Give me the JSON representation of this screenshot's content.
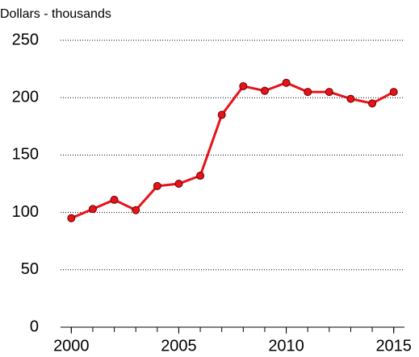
{
  "chart_data": {
    "type": "line",
    "subtitle": "Dollars - thousands",
    "x": [
      2000,
      2001,
      2002,
      2003,
      2004,
      2005,
      2006,
      2007,
      2008,
      2009,
      2010,
      2011,
      2012,
      2013,
      2014,
      2015
    ],
    "series": [
      {
        "color": "#e8121b",
        "values": [
          95,
          103,
          111,
          102,
          123,
          125,
          132,
          185,
          210,
          206,
          213,
          205,
          205,
          199,
          195,
          205
        ]
      }
    ],
    "xlim": [
      1999.5,
      2015.5
    ],
    "xticks": [
      2000,
      2005,
      2010,
      2015
    ],
    "ylim": [
      0,
      250
    ],
    "yticks": [
      0,
      50,
      100,
      150,
      200,
      250
    ],
    "grid": true
  }
}
